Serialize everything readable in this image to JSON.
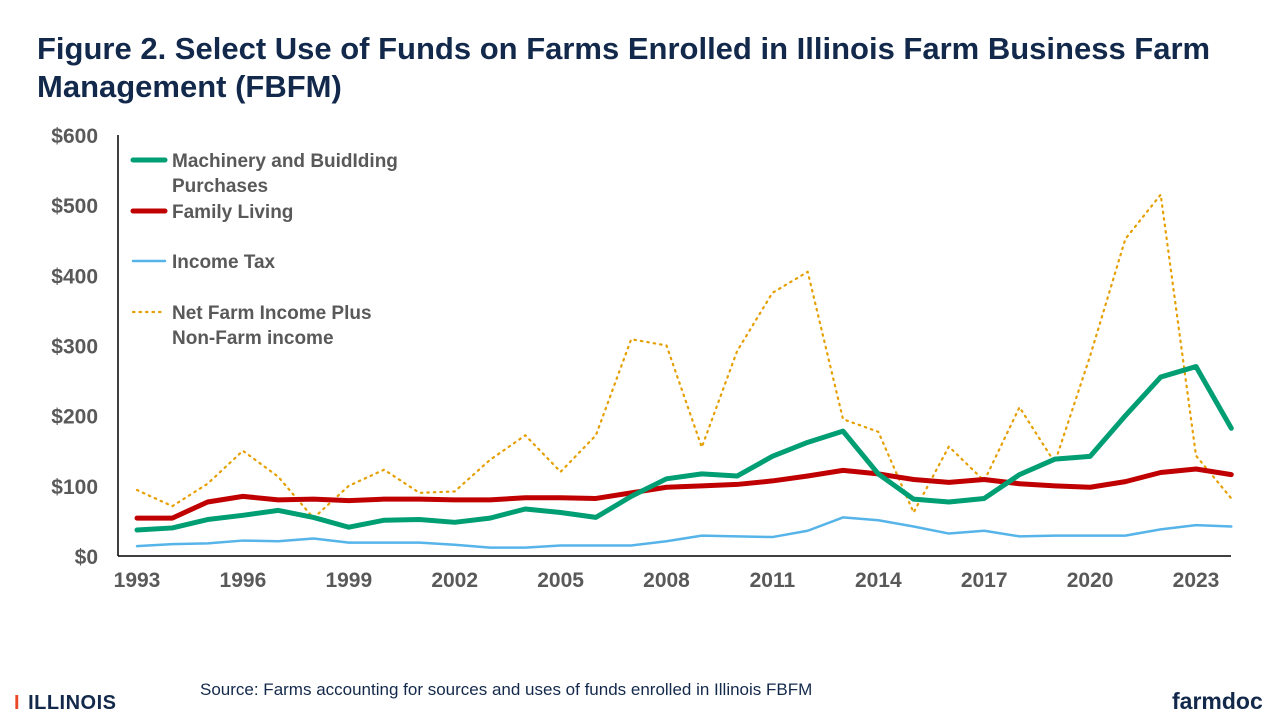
{
  "title": "Figure 2. Select Use of Funds on Farms Enrolled in Illinois  Farm Business Farm Management (FBFM)",
  "source": "Source:  Farms accounting for sources and uses of funds enrolled in Illinois FBFM",
  "logos": {
    "left": "ILLINOIS",
    "right": "farmdoc"
  },
  "chart_data": {
    "type": "line",
    "title": "Figure 2. Select Use of Funds on Farms Enrolled in Illinois  Farm Business Farm Management (FBFM)",
    "xlabel": "",
    "ylabel": "",
    "ylim": [
      0,
      600
    ],
    "xlim": [
      1993,
      2024
    ],
    "y_ticks": [
      "$0",
      "$100",
      "$200",
      "$300",
      "$400",
      "$500",
      "$600"
    ],
    "x_ticks": [
      "1993",
      "1996",
      "1999",
      "2002",
      "2005",
      "2008",
      "2011",
      "2014",
      "2017",
      "2020",
      "2023"
    ],
    "grid": false,
    "legend_position": "top-left",
    "x": [
      1993,
      1994,
      1995,
      1996,
      1997,
      1998,
      1999,
      2000,
      2001,
      2002,
      2003,
      2004,
      2005,
      2006,
      2007,
      2008,
      2009,
      2010,
      2011,
      2012,
      2013,
      2014,
      2015,
      2016,
      2017,
      2018,
      2019,
      2020,
      2021,
      2022,
      2023,
      2024
    ],
    "series": [
      {
        "name": "Machinery and BuidIding Purchases",
        "color": "#009e73",
        "style": "solid",
        "values": [
          37,
          40,
          52,
          58,
          65,
          55,
          41,
          51,
          52,
          48,
          54,
          67,
          62,
          55,
          85,
          110,
          117,
          114,
          142,
          162,
          178,
          117,
          81,
          77,
          82,
          116,
          138,
          142,
          200,
          255,
          270,
          182
        ]
      },
      {
        "name": "Family Living",
        "color": "#c00000",
        "style": "solid",
        "values": [
          54,
          54,
          77,
          85,
          80,
          81,
          79,
          81,
          81,
          80,
          80,
          83,
          83,
          82,
          90,
          98,
          100,
          102,
          107,
          114,
          122,
          117,
          109,
          105,
          109,
          103,
          100,
          98,
          106,
          119,
          124,
          116
        ]
      },
      {
        "name": "Income Tax",
        "color": "#56b4e9",
        "style": "solid",
        "values": [
          14,
          17,
          18,
          22,
          21,
          25,
          19,
          19,
          19,
          16,
          12,
          12,
          15,
          15,
          15,
          21,
          29,
          28,
          27,
          36,
          55,
          51,
          42,
          32,
          36,
          28,
          29,
          29,
          29,
          38,
          44,
          42
        ]
      },
      {
        "name": "Net Farm Income Plus Non-Farm income",
        "color": "#e69f00",
        "style": "dotted",
        "values": [
          94,
          71,
          103,
          150,
          113,
          54,
          100,
          123,
          90,
          92,
          137,
          172,
          120,
          172,
          309,
          300,
          155,
          292,
          375,
          405,
          195,
          177,
          62,
          156,
          107,
          212,
          133,
          285,
          452,
          515,
          143,
          82
        ]
      }
    ]
  }
}
